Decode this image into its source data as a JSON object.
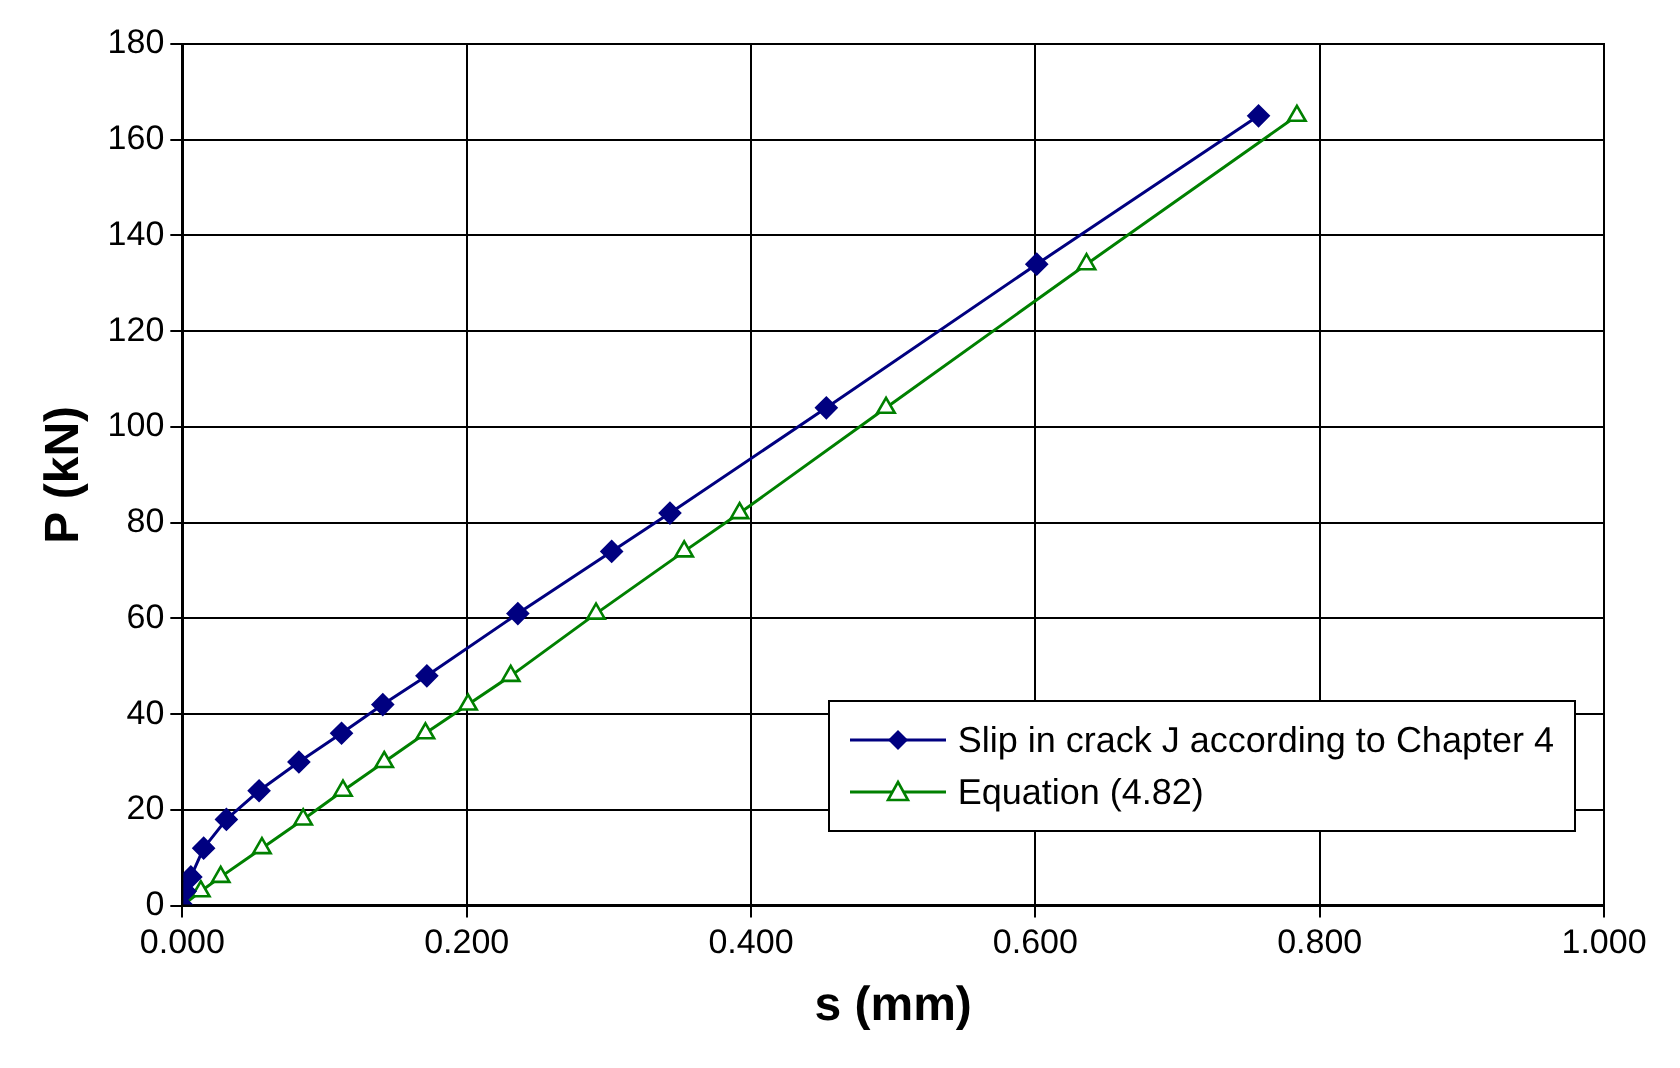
{
  "chart_data": {
    "type": "line",
    "xlabel": "s (mm)",
    "ylabel": "P (kN)",
    "xlim": [
      0,
      1
    ],
    "xticks": [
      {
        "value": 0,
        "label": "0.000"
      },
      {
        "value": 0.2,
        "label": "0.200"
      },
      {
        "value": 0.4,
        "label": "0.400"
      },
      {
        "value": 0.6,
        "label": "0.600"
      },
      {
        "value": 0.8,
        "label": "0.800"
      },
      {
        "value": 1,
        "label": "1.000"
      }
    ],
    "ylim": [
      0,
      180
    ],
    "yticks": [
      0,
      20,
      40,
      60,
      80,
      100,
      120,
      140,
      160,
      180
    ],
    "grid": true,
    "legend": "bottom right",
    "line_style": "solid",
    "series": [
      {
        "name": "Slip in crack J according to Chapter 4",
        "color": "#000080",
        "marker": "diamond",
        "x": [
          0,
          0.002,
          0.006,
          0.015,
          0.031,
          0.054,
          0.082,
          0.112,
          0.141,
          0.172,
          0.236,
          0.302,
          0.343,
          0.453,
          0.601,
          0.757
        ],
        "values": [
          0,
          3,
          6,
          12,
          18,
          24,
          30,
          36,
          42,
          48,
          61,
          74,
          82,
          104,
          134,
          165
        ]
      },
      {
        "name": "Equation (4.82)",
        "color": "#008000",
        "marker": "triangle",
        "x": [
          0,
          0.013,
          0.027,
          0.056,
          0.085,
          0.113,
          0.142,
          0.171,
          0.201,
          0.231,
          0.291,
          0.353,
          0.392,
          0.495,
          0.636,
          0.784
        ],
        "values": [
          0,
          3,
          6,
          12,
          18,
          24,
          30,
          36,
          42,
          48,
          61,
          74,
          82,
          104,
          134,
          165
        ]
      }
    ]
  }
}
